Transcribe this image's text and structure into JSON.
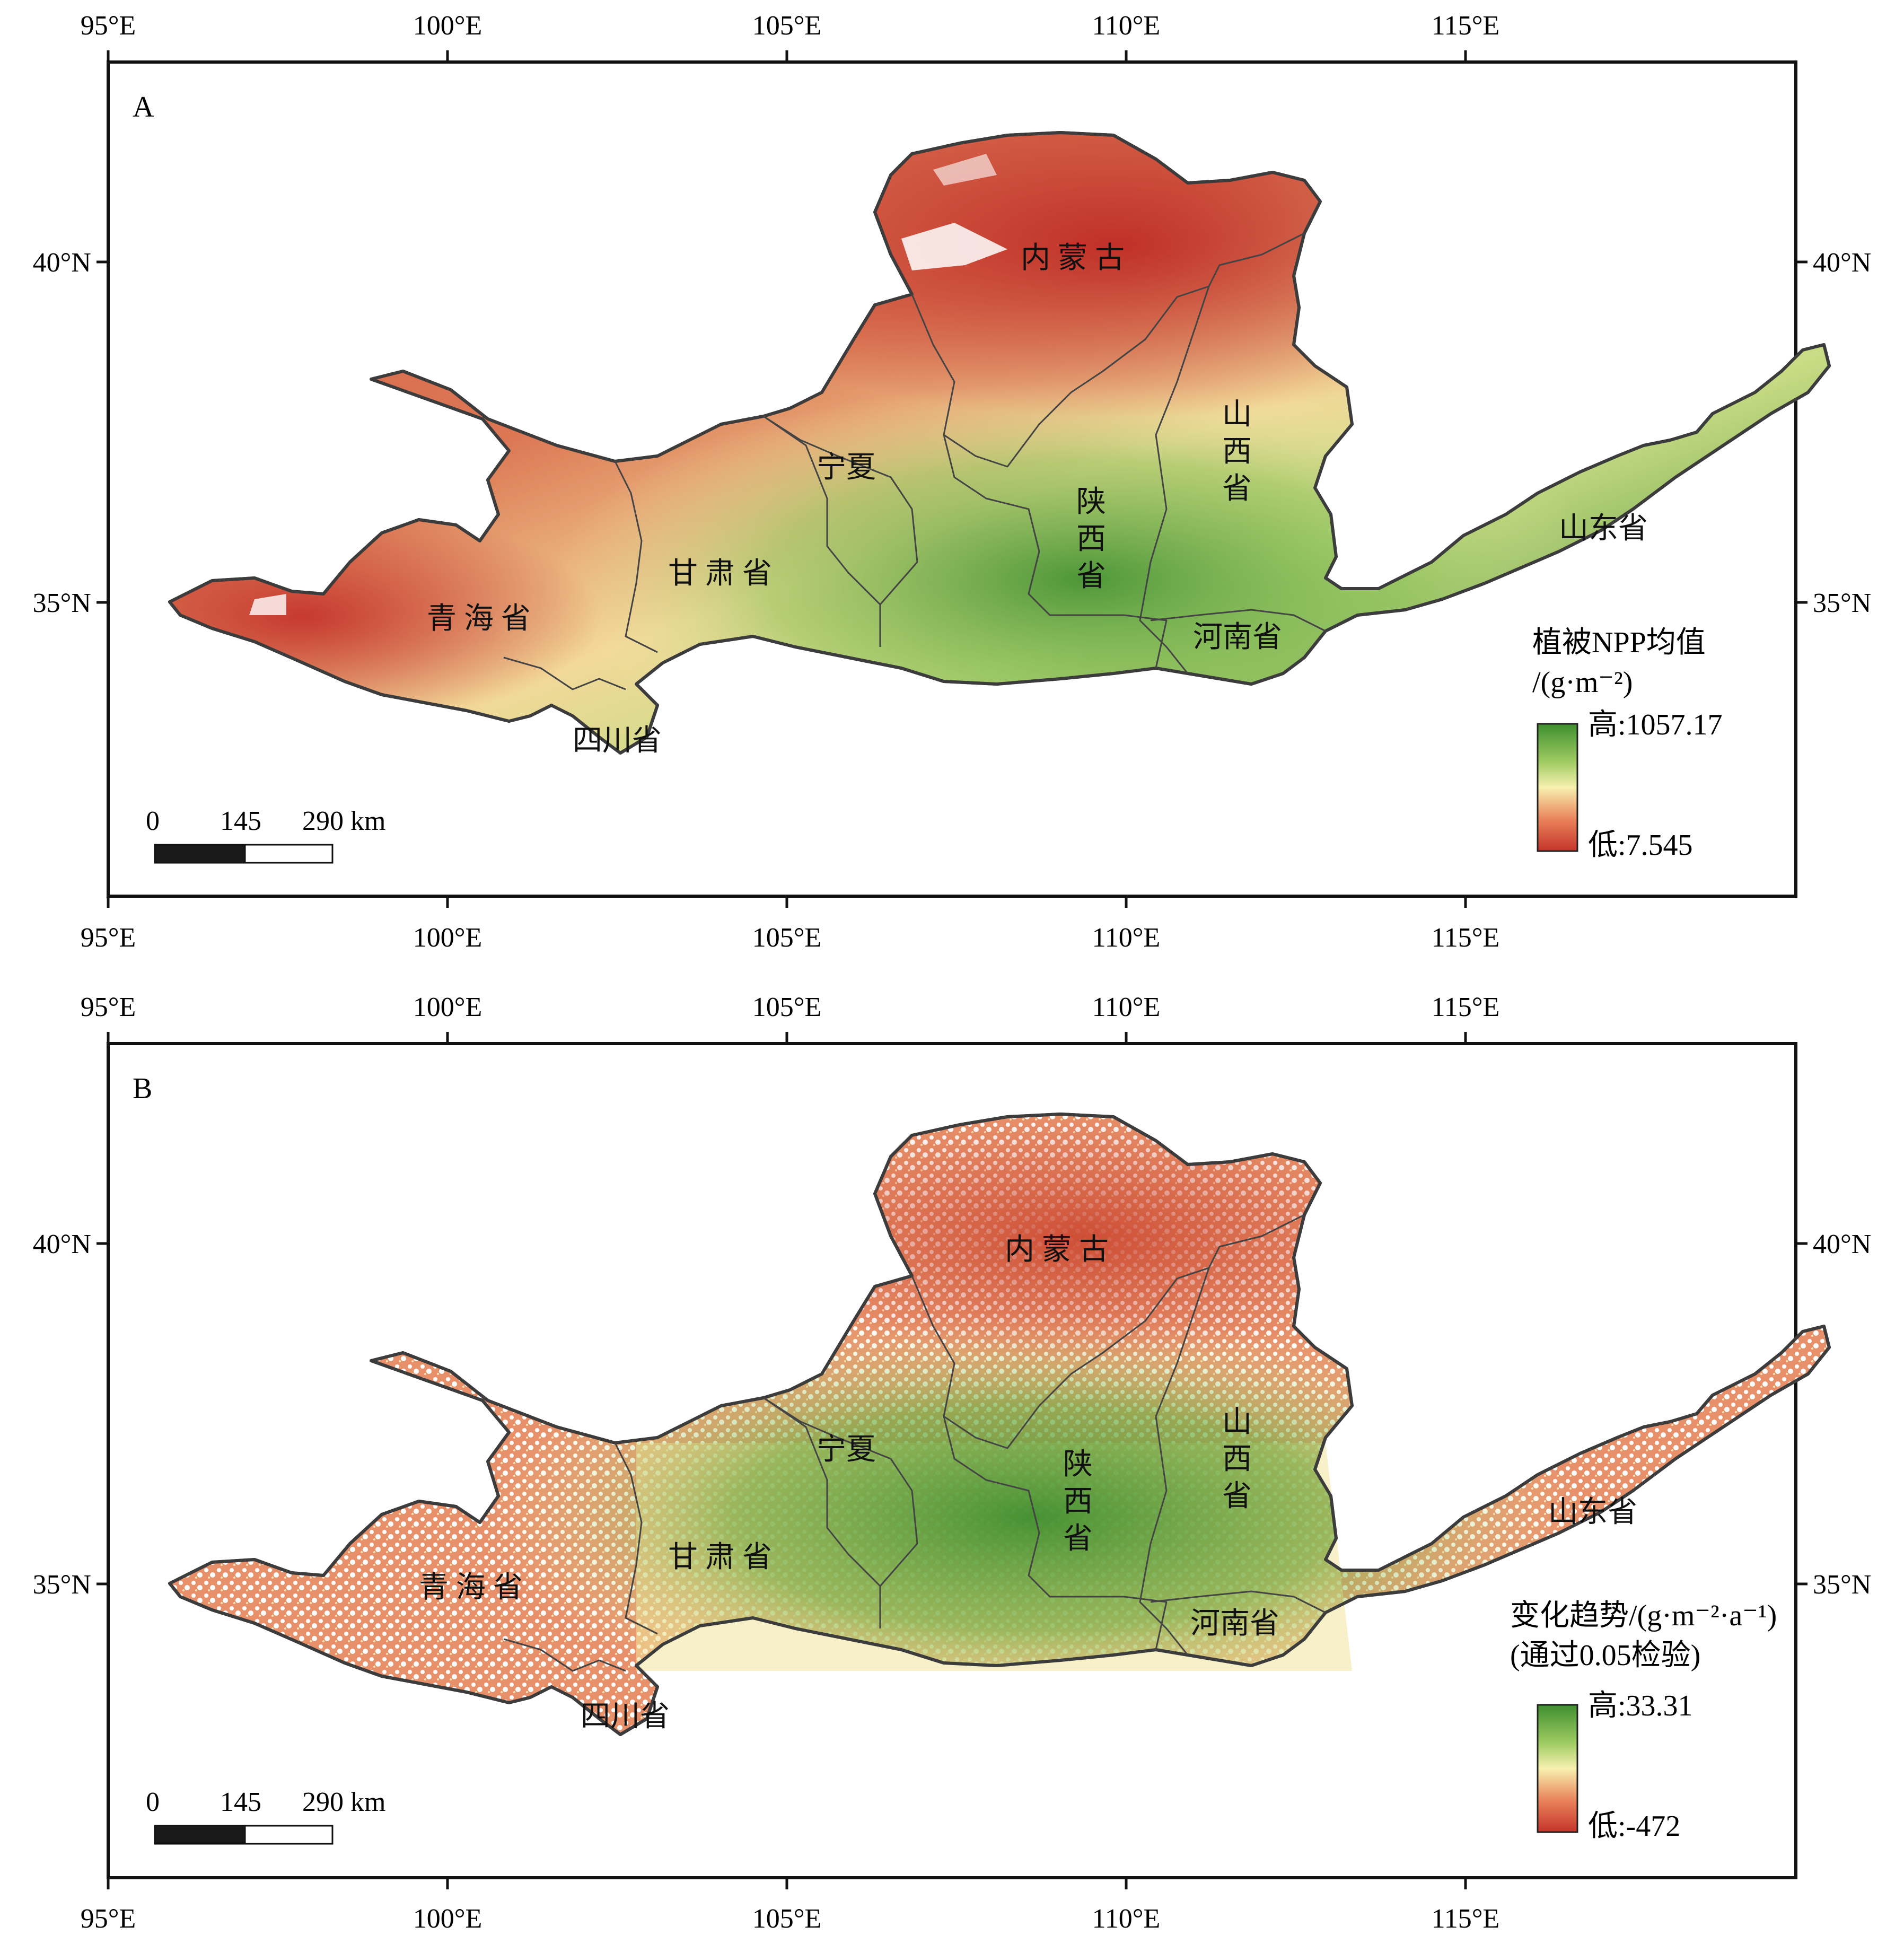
{
  "axes": {
    "lon_ticks": [
      "95°E",
      "100°E",
      "105°E",
      "110°E",
      "115°E"
    ],
    "lat_ticks": [
      "40°N",
      "35°N"
    ]
  },
  "scale_bar": {
    "labels": [
      "0",
      "145",
      "290 km"
    ]
  },
  "colors": {
    "low": "#c5342b",
    "mid_low": "#e9835a",
    "mid": "#f7f1b0",
    "mid_high": "#9fcb62",
    "high": "#3e8f2f"
  },
  "panels": [
    {
      "letter": "A",
      "legend": {
        "title_line1": "植被NPP均值",
        "title_line2": "/(g·m⁻²)",
        "high": "高:1057.17",
        "low": "低:7.545"
      },
      "provinces": {
        "neimenggu": "内 蒙 古",
        "ningxia": "宁夏",
        "shaanxi": [
          "陕",
          "西",
          "省"
        ],
        "shanxi": [
          "山",
          "西",
          "省"
        ],
        "shandong": "山东省",
        "gansu": "甘 肃 省",
        "qinghai": "青 海 省",
        "henan": "河南省",
        "sichuan": "四川省"
      }
    },
    {
      "letter": "B",
      "legend": {
        "title_line1": "变化趋势/(g·m⁻²·a⁻¹)",
        "title_line2": "(通过0.05检验)",
        "high": "高:33.31",
        "low": "低:-472"
      },
      "provinces": {
        "neimenggu": "内 蒙 古",
        "ningxia": "宁夏",
        "shaanxi": [
          "陕",
          "西",
          "省"
        ],
        "shanxi": [
          "山",
          "西",
          "省"
        ],
        "shandong": "山东省",
        "gansu": "甘 肃 省",
        "qinghai": "青 海 省",
        "henan": "河南省",
        "sichuan": "四川省"
      }
    }
  ]
}
